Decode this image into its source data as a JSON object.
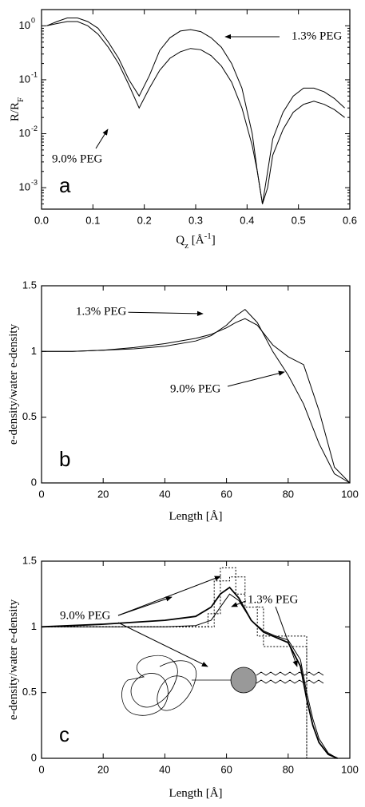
{
  "chart_data": [
    {
      "type": "line",
      "panel_label": "a",
      "log_y": true,
      "x_label_parts": [
        {
          "text": "Q"
        },
        {
          "text": "z",
          "sub": true
        },
        {
          "text": " [Å"
        },
        {
          "text": "-1",
          "sup": true
        },
        {
          "text": "]"
        }
      ],
      "y_label_parts": [
        {
          "text": "R/R"
        },
        {
          "text": "F",
          "sub": true
        }
      ],
      "xlim": [
        0,
        0.6
      ],
      "xticks": [
        {
          "value": 0,
          "label": "0.0"
        },
        0.1,
        0.2,
        0.3,
        0.4,
        0.5,
        0.6
      ],
      "ylim": [
        0.0004,
        2
      ],
      "yticks": [
        {
          "value": 0.001,
          "label": "10",
          "exponent": "-3"
        },
        {
          "value": 0.01,
          "label": "10",
          "exponent": "-2"
        },
        {
          "value": 0.1,
          "label": "10",
          "exponent": "-1"
        },
        {
          "value": 1,
          "label": "10",
          "exponent": "0"
        }
      ],
      "x": [
        0.01,
        0.03,
        0.05,
        0.07,
        0.09,
        0.11,
        0.13,
        0.15,
        0.17,
        0.19,
        0.21,
        0.23,
        0.25,
        0.27,
        0.29,
        0.31,
        0.33,
        0.35,
        0.37,
        0.39,
        0.41,
        0.42,
        0.43,
        0.44,
        0.45,
        0.47,
        0.49,
        0.51,
        0.53,
        0.55,
        0.57,
        0.59
      ],
      "series": [
        {
          "name": "1.3% PEG",
          "color": "#000000",
          "values": [
            1.0,
            1.2,
            1.4,
            1.4,
            1.2,
            0.9,
            0.5,
            0.25,
            0.1,
            0.05,
            0.12,
            0.35,
            0.6,
            0.8,
            0.85,
            0.78,
            0.6,
            0.4,
            0.2,
            0.07,
            0.01,
            0.002,
            0.0005,
            0.002,
            0.008,
            0.025,
            0.05,
            0.07,
            0.07,
            0.06,
            0.045,
            0.03
          ]
        },
        {
          "name": "9.0% PEG",
          "color": "#000000",
          "values": [
            1.0,
            1.1,
            1.2,
            1.2,
            1.0,
            0.7,
            0.4,
            0.2,
            0.08,
            0.03,
            0.07,
            0.15,
            0.25,
            0.33,
            0.38,
            0.36,
            0.28,
            0.18,
            0.09,
            0.03,
            0.006,
            0.002,
            0.0005,
            0.001,
            0.004,
            0.012,
            0.025,
            0.035,
            0.04,
            0.035,
            0.028,
            0.02
          ]
        }
      ]
    },
    {
      "type": "line",
      "panel_label": "b",
      "x_label_parts": [
        {
          "text": "Length [Å]"
        }
      ],
      "y_label_parts": [
        {
          "text": "e-density/water e-density"
        }
      ],
      "xlim": [
        0,
        100
      ],
      "xticks": [
        0,
        20,
        40,
        60,
        80,
        100
      ],
      "ylim": [
        0,
        1.5
      ],
      "yticks": [
        0,
        0.5,
        1,
        1.5
      ],
      "x": [
        0,
        10,
        20,
        30,
        40,
        50,
        55,
        60,
        63,
        66,
        70,
        75,
        80,
        85,
        90,
        95,
        100
      ],
      "series": [
        {
          "name": "1.3% PEG",
          "color": "#000000",
          "values": [
            1,
            1,
            1.01,
            1.02,
            1.04,
            1.08,
            1.12,
            1.2,
            1.27,
            1.32,
            1.22,
            1.0,
            0.82,
            0.6,
            0.3,
            0.07,
            0
          ]
        },
        {
          "name": "9.0% PEG",
          "color": "#000000",
          "values": [
            1,
            1,
            1.01,
            1.03,
            1.06,
            1.1,
            1.13,
            1.18,
            1.22,
            1.25,
            1.2,
            1.05,
            0.96,
            0.9,
            0.55,
            0.12,
            0
          ]
        }
      ]
    },
    {
      "type": "line",
      "panel_label": "c",
      "x_label_parts": [
        {
          "text": "Length [Å]"
        }
      ],
      "y_label_parts": [
        {
          "text": "e-density/water e-density"
        }
      ],
      "xlim": [
        0,
        100
      ],
      "xticks": [
        0,
        20,
        40,
        60,
        80,
        100
      ],
      "ylim": [
        0,
        1.5
      ],
      "yticks": [
        0,
        0.5,
        1,
        1.5
      ],
      "x": [
        0,
        20,
        40,
        50,
        55,
        58,
        61,
        64,
        68,
        72,
        76,
        80,
        84,
        86,
        88,
        90,
        93,
        96
      ],
      "series": [
        {
          "name": "1.3% PEG",
          "color": "#000000",
          "values": [
            1,
            1,
            1,
            1.01,
            1.05,
            1.15,
            1.25,
            1.2,
            1.05,
            0.97,
            0.93,
            0.9,
            0.75,
            0.5,
            0.3,
            0.15,
            0.04,
            0
          ]
        },
        {
          "name": "9.0% PEG",
          "color": "#000000",
          "values": [
            1,
            1.02,
            1.05,
            1.08,
            1.15,
            1.25,
            1.3,
            1.22,
            1.05,
            0.96,
            0.92,
            0.88,
            0.7,
            0.45,
            0.25,
            0.12,
            0.03,
            0
          ]
        },
        {
          "color": "#000000",
          "dash": true,
          "x": [
            0,
            54,
            54,
            58,
            58,
            63,
            63,
            70,
            70,
            86,
            86
          ],
          "values": [
            1,
            1,
            1.1,
            1.1,
            1.45,
            1.45,
            1.25,
            1.25,
            0.93,
            0.93,
            0
          ]
        },
        {
          "color": "#000000",
          "dash": true,
          "x": [
            0,
            56,
            56,
            61,
            61,
            66,
            66,
            72,
            72,
            86,
            86
          ],
          "values": [
            1,
            1,
            1.35,
            1.35,
            1.38,
            1.38,
            1.15,
            1.15,
            0.85,
            0.85,
            0
          ]
        }
      ]
    }
  ]
}
